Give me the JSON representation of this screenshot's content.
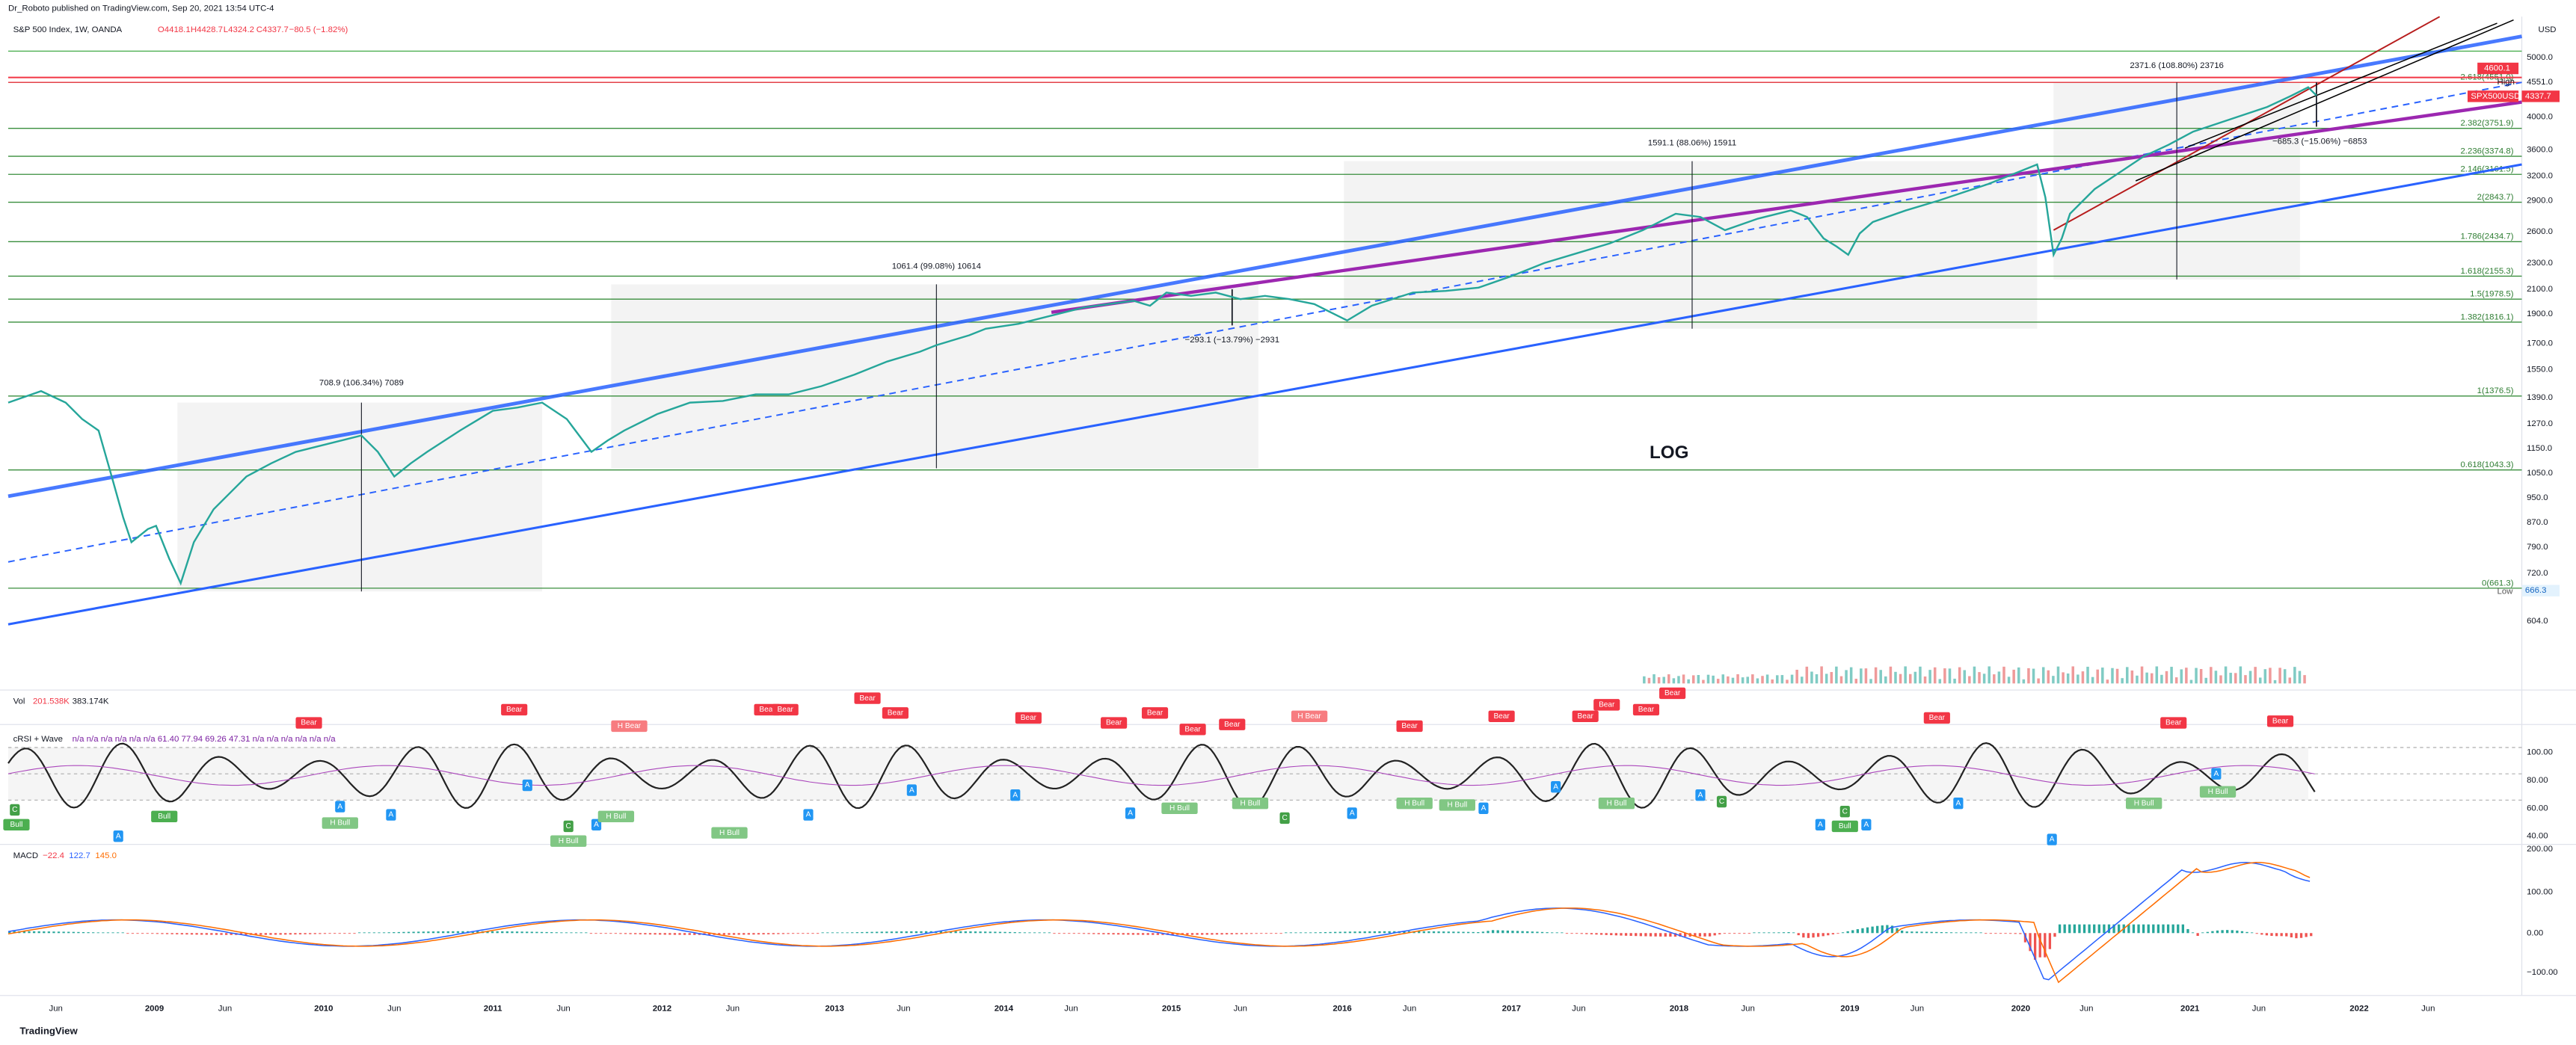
{
  "header": {
    "publisher": "Dr_Roboto published on TradingView.com, Sep 20, 2021 13:54 UTC-4",
    "symbol": "S&P 500 Index, 1W, OANDA",
    "ohlc": [
      "O4418.1",
      "H4428.7",
      "L4324.2",
      "C4337.7",
      "−80.5 (−1.82%)"
    ],
    "currency": "USD"
  },
  "price_axis": [
    "5000.0",
    "4551.0",
    "4000.0",
    "3600.0",
    "3200.0",
    "2900.0",
    "2600.0",
    "2300.0",
    "2100.0",
    "1900.0",
    "1700.0",
    "1550.0",
    "1390.0",
    "1270.0",
    "1150.0",
    "1050.0",
    "950.0",
    "870.0",
    "790.0",
    "720.0",
    "604.0"
  ],
  "price_tags": {
    "top": "4600.1",
    "symbol": "SPX500USD",
    "last": "4337.7",
    "high": "High",
    "low_value": "666.3",
    "low": "Low"
  },
  "fib_levels": [
    "2.618(4551.0)",
    "2.382(3751.9)",
    "2.236(3374.8)",
    "2.146(3161.5)",
    "2(2843.7)",
    "1.786(2434.7)",
    "1.618(2155.3)",
    "1.5(1978.5)",
    "1.382(1816.1)",
    "1(1376.5)",
    "0.618(1043.3)",
    "0(661.3)"
  ],
  "measurements": [
    "2371.6 (108.80%) 23716",
    "1591.1 (88.06%) 15911",
    "1061.4 (99.08%) 10614",
    "708.9 (106.34%) 7089",
    "−293.1 (−13.79%) −2931",
    "−685.3 (−15.06%) −6853"
  ],
  "log_label": "LOG",
  "volume": {
    "title": "Vol",
    "values": [
      "201.538K",
      "383.174K"
    ]
  },
  "crsi": {
    "title": "cRSI + Wave",
    "values": "n/a n/a n/a n/a n/a n/a 61.40 77.94 69.26 47.31 n/a n/a n/a n/a n/a n/a",
    "axis": [
      "100.00",
      "80.00",
      "60.00",
      "40.00"
    ],
    "signals": [
      "C",
      "Bull",
      "A",
      "Bull",
      "H Bull",
      "A",
      "A",
      "Bear",
      "Bear",
      "H Bear",
      "A",
      "C",
      "H Bull",
      "A",
      "H Bull",
      "H Bull",
      "Bear",
      "Bear",
      "A",
      "Bear",
      "Bear",
      "A",
      "Bear",
      "A",
      "Bear",
      "A",
      "Bear",
      "Bear",
      "H Bull",
      "Bear",
      "H Bull",
      "C",
      "H Bear",
      "A",
      "Bear",
      "H Bull",
      "H Bull",
      "A",
      "Bear",
      "A",
      "Bear",
      "Bear",
      "H Bull",
      "Bear",
      "Bear",
      "A",
      "C",
      "A",
      "C",
      "Bull",
      "A",
      "Bear",
      "A",
      "A",
      "H Bull",
      "Bear",
      "A",
      "H Bull",
      "Bear"
    ]
  },
  "macd": {
    "title": "MACD",
    "values": [
      "−22.4",
      "122.7",
      "145.0"
    ],
    "axis": [
      "200.00",
      "100.00",
      "0.00",
      "−100.00"
    ]
  },
  "time_axis": [
    "Jun",
    "2009",
    "Jun",
    "2010",
    "Jun",
    "2011",
    "Jun",
    "2012",
    "Jun",
    "2013",
    "Jun",
    "2014",
    "Jun",
    "2015",
    "Jun",
    "2016",
    "Jun",
    "2017",
    "Jun",
    "2018",
    "Jun",
    "2019",
    "Jun",
    "2020",
    "Jun",
    "2021",
    "Jun",
    "2022",
    "Jun"
  ],
  "footer": "TradingView"
}
